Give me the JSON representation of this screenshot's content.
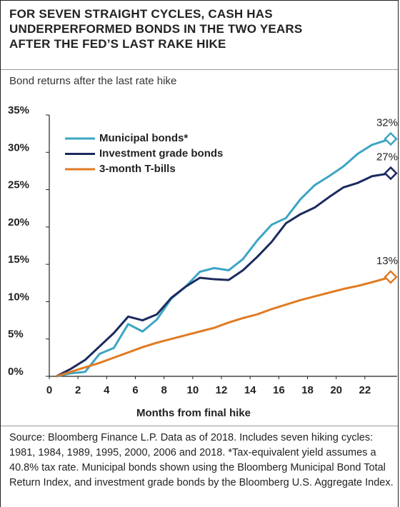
{
  "chart_data": {
    "type": "line",
    "title": "FOR SEVEN STRAIGHT CYCLES, CASH HAS UNDERPERFORMED BONDS IN THE TWO YEARS AFTER THE FED’S LAST RAKE HIKE",
    "subtitle": "Bond returns after the last rate hike",
    "xlabel": "Months from final hike",
    "source": "Source: Bloomberg Finance L.P. Data as of 2018. Includes seven hiking cycles: 1981, 1984, 1989, 1995, 2000, 2006 and 2018. *Tax-equivalent yield assumes a 40.8% tax rate. Municipal bonds shown using the Bloomberg Municipal Bond Total Return Index, and investment grade bonds by the Bloomberg U.S. Aggregate Index.",
    "x": [
      0.5,
      1.5,
      2.5,
      3.5,
      4.5,
      5.5,
      6.5,
      7.5,
      8.5,
      9.5,
      10.5,
      11.5,
      12.5,
      13.5,
      14.5,
      15.5,
      16.5,
      17.5,
      18.5,
      19.5,
      20.5,
      21.5,
      22.5,
      23.8
    ],
    "series": [
      {
        "name": "Municipal bonds*",
        "color": "#3ca5c4",
        "end_label": "32%",
        "values": [
          0,
          0.4,
          0.6,
          3.0,
          3.8,
          7.0,
          6.0,
          7.6,
          10.4,
          12.0,
          14.0,
          14.5,
          14.2,
          15.7,
          18.2,
          20.3,
          21.2,
          23.7,
          25.6,
          26.8,
          28.1,
          29.8,
          31.0,
          31.8
        ]
      },
      {
        "name": "Investment grade bonds",
        "color": "#1b2a5e",
        "end_label": "27%",
        "values": [
          0,
          1.0,
          2.2,
          4.0,
          5.8,
          8.0,
          7.5,
          8.3,
          10.5,
          12.0,
          13.2,
          13.0,
          12.9,
          14.2,
          16.0,
          18.0,
          20.5,
          21.7,
          22.6,
          24.0,
          25.3,
          25.9,
          26.8,
          27.2
        ]
      },
      {
        "name": "3-month T-bills",
        "color": "#e07b22",
        "end_label": "13%",
        "values": [
          0,
          0.6,
          1.2,
          1.8,
          2.5,
          3.2,
          3.9,
          4.5,
          5.0,
          5.5,
          6.0,
          6.5,
          7.2,
          7.8,
          8.3,
          9.0,
          9.6,
          10.2,
          10.7,
          11.2,
          11.7,
          12.1,
          12.6,
          13.3
        ]
      }
    ],
    "xlim": [
      0,
      24
    ],
    "xticks": [
      0,
      2,
      4,
      6,
      8,
      10,
      12,
      14,
      16,
      18,
      20,
      22
    ],
    "ylim": [
      0,
      35
    ],
    "yticks": [
      {
        "value": 0,
        "label": "0%"
      },
      {
        "value": 5,
        "label": "5%"
      },
      {
        "value": 10,
        "label": "10%"
      },
      {
        "value": 15,
        "label": "15%"
      },
      {
        "value": 20,
        "label": "20%"
      },
      {
        "value": 25,
        "label": "25%"
      },
      {
        "value": 30,
        "label": "30%"
      },
      {
        "value": 35,
        "label": "35%"
      }
    ],
    "grid": false,
    "legend": "top-left"
  }
}
